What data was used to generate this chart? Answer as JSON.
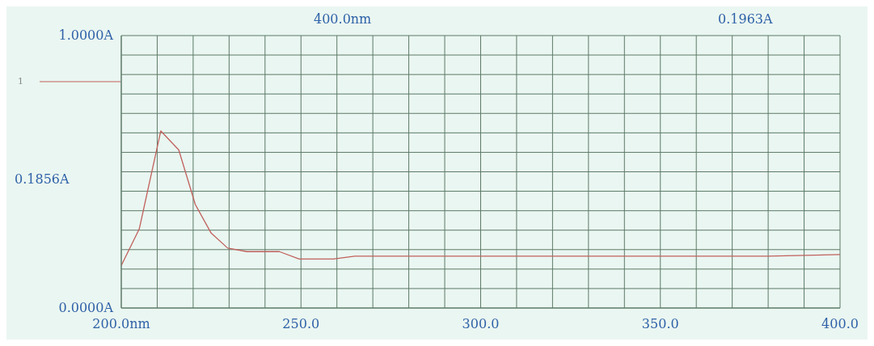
{
  "chart_data": {
    "type": "line",
    "annotations": [
      "400.0nm",
      "0.1963A",
      "0.1856A"
    ],
    "x": [
      200,
      205,
      211,
      216,
      220.6,
      225,
      229.6,
      235,
      244,
      249.5,
      259,
      265,
      280,
      300,
      320,
      340,
      360,
      380,
      400
    ],
    "series": [
      {
        "name": "1",
        "color": "#c0605c",
        "values": [
          0.156,
          0.29,
          0.65,
          0.58,
          0.38,
          0.275,
          0.22,
          0.207,
          0.207,
          0.18,
          0.18,
          0.19,
          0.19,
          0.19,
          0.19,
          0.19,
          0.19,
          0.19,
          0.196
        ]
      }
    ],
    "xlim": [
      200,
      400
    ],
    "xticks": [
      {
        "value": 200,
        "label": "200.0nm"
      },
      {
        "value": 210,
        "label": null
      },
      {
        "value": 220,
        "label": null
      },
      {
        "value": 230,
        "label": null
      },
      {
        "value": 240,
        "label": null
      },
      {
        "value": 250,
        "label": "250.0"
      },
      {
        "value": 260,
        "label": null
      },
      {
        "value": 270,
        "label": null
      },
      {
        "value": 280,
        "label": null
      },
      {
        "value": 290,
        "label": null
      },
      {
        "value": 300,
        "label": "300.0"
      },
      {
        "value": 310,
        "label": null
      },
      {
        "value": 320,
        "label": null
      },
      {
        "value": 330,
        "label": null
      },
      {
        "value": 340,
        "label": null
      },
      {
        "value": 350,
        "label": "350.0"
      },
      {
        "value": 360,
        "label": null
      },
      {
        "value": 370,
        "label": null
      },
      {
        "value": 380,
        "label": null
      },
      {
        "value": 390,
        "label": null
      },
      {
        "value": 400,
        "label": "400.0"
      }
    ],
    "ylim": [
      0,
      1
    ],
    "yticks": [
      {
        "value": 0,
        "label": "0.0000A"
      },
      {
        "value": 0.0714,
        "label": null
      },
      {
        "value": 0.1429,
        "label": null
      },
      {
        "value": 0.2143,
        "label": null
      },
      {
        "value": 0.2857,
        "label": null
      },
      {
        "value": 0.3571,
        "label": null
      },
      {
        "value": 0.4286,
        "label": null
      },
      {
        "value": 0.5,
        "label": null
      },
      {
        "value": 0.5714,
        "label": null
      },
      {
        "value": 0.6429,
        "label": null
      },
      {
        "value": 0.7143,
        "label": null
      },
      {
        "value": 0.7857,
        "label": null
      },
      {
        "value": 0.8571,
        "label": null
      },
      {
        "value": 0.9286,
        "label": null
      },
      {
        "value": 1,
        "label": "1.0000A"
      }
    ],
    "grid": true,
    "legend": "left",
    "marker": "none",
    "line_style": "solid"
  }
}
